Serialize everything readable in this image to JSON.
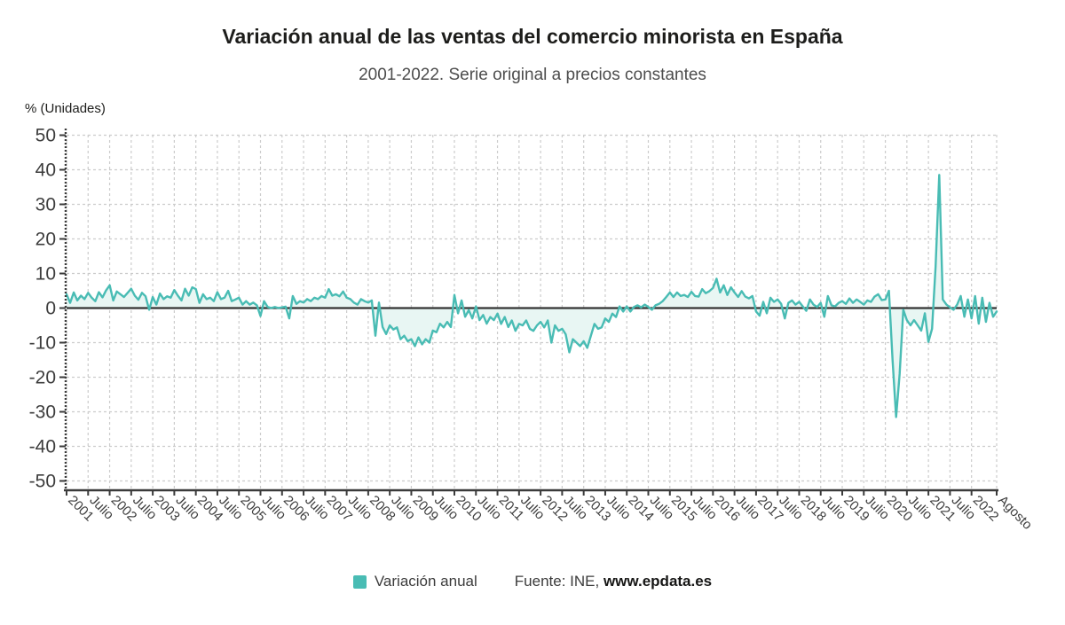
{
  "chart_data": {
    "type": "line",
    "title": "Variación anual de las ventas del comercio minorista en España",
    "subtitle": "2001-2022. Serie original a precios constantes",
    "ylabel": "% (Unidades)",
    "xlabel": "",
    "frequency": "monthly",
    "x_range": [
      "2001-01",
      "2022-08"
    ],
    "ylim": [
      -50,
      50
    ],
    "grid": "dashed",
    "legend_position": "bottom",
    "y_ticks": [
      50,
      40,
      30,
      20,
      10,
      0,
      -10,
      -20,
      -30,
      -40,
      -50
    ],
    "x_ticks": [
      [
        0,
        "2001"
      ],
      [
        6,
        "Julio"
      ],
      [
        12,
        "2002"
      ],
      [
        18,
        "Julio"
      ],
      [
        24,
        "2003"
      ],
      [
        30,
        "Julio"
      ],
      [
        36,
        "2004"
      ],
      [
        42,
        "Julio"
      ],
      [
        48,
        "2005"
      ],
      [
        54,
        "Julio"
      ],
      [
        60,
        "2006"
      ],
      [
        66,
        "Julio"
      ],
      [
        72,
        "2007"
      ],
      [
        78,
        "Julio"
      ],
      [
        84,
        "2008"
      ],
      [
        90,
        "Julio"
      ],
      [
        96,
        "2009"
      ],
      [
        102,
        "Julio"
      ],
      [
        108,
        "2010"
      ],
      [
        114,
        "Julio"
      ],
      [
        120,
        "2011"
      ],
      [
        126,
        "Julio"
      ],
      [
        132,
        "2012"
      ],
      [
        138,
        "Julio"
      ],
      [
        144,
        "2013"
      ],
      [
        150,
        "Julio"
      ],
      [
        156,
        "2014"
      ],
      [
        162,
        "Julio"
      ],
      [
        168,
        "2015"
      ],
      [
        174,
        "Julio"
      ],
      [
        180,
        "2016"
      ],
      [
        186,
        "Julio"
      ],
      [
        192,
        "2017"
      ],
      [
        198,
        "Julio"
      ],
      [
        204,
        "2018"
      ],
      [
        210,
        "Julio"
      ],
      [
        216,
        "2019"
      ],
      [
        222,
        "Julio"
      ],
      [
        228,
        "2020"
      ],
      [
        234,
        "Julio"
      ],
      [
        240,
        "2021"
      ],
      [
        246,
        "Julio"
      ],
      [
        252,
        "2022"
      ],
      [
        259,
        "Agosto"
      ]
    ],
    "series": [
      {
        "name": "Variación anual",
        "values": [
          4.0,
          1.5,
          4.5,
          2.2,
          3.6,
          2.6,
          4.4,
          3.0,
          2.0,
          4.6,
          3.1,
          5.1,
          6.6,
          2.2,
          4.8,
          4.0,
          3.2,
          4.4,
          5.6,
          3.6,
          2.4,
          4.4,
          3.4,
          -0.5,
          3.2,
          1.0,
          4.2,
          2.6,
          3.4,
          3.0,
          5.2,
          3.6,
          2.2,
          5.6,
          3.6,
          6.0,
          5.5,
          1.5,
          4.0,
          2.6,
          3.0,
          2.0,
          4.6,
          2.6,
          3.0,
          5.0,
          2.0,
          2.5,
          3.0,
          1.0,
          2.0,
          1.0,
          1.6,
          0.8,
          -2.3,
          2.0,
          0.3,
          0.0,
          0.3,
          0.0,
          0.2,
          0.4,
          -3.0,
          3.5,
          1.2,
          2.0,
          1.6,
          2.6,
          2.0,
          3.0,
          2.6,
          3.5,
          3.0,
          5.5,
          3.6,
          4.0,
          3.4,
          4.8,
          3.0,
          2.6,
          1.6,
          1.0,
          2.6,
          2.0,
          1.6,
          2.2,
          -8.0,
          1.6,
          -5.5,
          -7.5,
          -5.0,
          -6.2,
          -5.6,
          -9.0,
          -8.0,
          -9.6,
          -9.0,
          -11.0,
          -8.5,
          -10.5,
          -9.0,
          -10.0,
          -6.5,
          -7.0,
          -4.5,
          -5.6,
          -4.0,
          -5.5,
          3.8,
          -1.5,
          2.2,
          -2.5,
          -0.6,
          -3.0,
          0.5,
          -3.5,
          -2.0,
          -4.5,
          -2.6,
          -3.5,
          -1.6,
          -4.6,
          -2.6,
          -5.5,
          -3.6,
          -6.6,
          -4.6,
          -5.0,
          -3.6,
          -6.0,
          -6.6,
          -5.0,
          -4.0,
          -5.6,
          -3.6,
          -10.0,
          -5.0,
          -6.6,
          -6.0,
          -7.6,
          -12.8,
          -9.0,
          -10.0,
          -11.0,
          -9.6,
          -11.5,
          -8.0,
          -4.6,
          -6.0,
          -5.6,
          -3.0,
          -4.0,
          -1.6,
          -2.6,
          0.5,
          -1.0,
          0.5,
          -1.0,
          0.3,
          0.8,
          0.2,
          1.0,
          0.3,
          -0.5,
          0.8,
          1.2,
          2.0,
          3.2,
          4.5,
          3.2,
          4.5,
          3.5,
          3.8,
          3.2,
          4.7,
          3.5,
          3.3,
          5.5,
          4.3,
          4.9,
          5.8,
          8.5,
          4.5,
          6.6,
          3.8,
          6.0,
          4.5,
          3.2,
          4.9,
          3.3,
          2.8,
          3.5,
          -1.0,
          -2.2,
          1.8,
          -1.5,
          3.0,
          1.8,
          2.5,
          1.2,
          -3.0,
          1.5,
          2.2,
          1.0,
          1.8,
          0.5,
          -0.8,
          2.5,
          1.0,
          0.3,
          1.5,
          -2.5,
          3.5,
          0.8,
          0.5,
          1.5,
          2.0,
          1.2,
          2.8,
          1.5,
          2.5,
          1.8,
          1.0,
          2.2,
          1.8,
          3.3,
          4.0,
          2.3,
          2.5,
          5.0,
          -15.0,
          -31.5,
          -19.0,
          -0.5,
          -3.5,
          -5.0,
          -3.5,
          -5.0,
          -6.5,
          -1.5,
          -9.8,
          -6.0,
          12.0,
          38.5,
          2.5,
          1.0,
          0.2,
          -0.5,
          1.0,
          3.5,
          -2.5,
          2.5,
          -3.0,
          3.5,
          -4.5,
          3.0,
          -4.0,
          1.5,
          -2.5,
          -1.0
        ]
      }
    ],
    "colors": {
      "line": "#49bcb4",
      "area": "#e8f6f3",
      "grid": "#cccccc",
      "axis": "#3b3b3b",
      "zero_line": "#333333",
      "text": "#3d3d3d"
    }
  },
  "source": {
    "prefix": "Fuente: INE,",
    "link": "www.epdata.es"
  }
}
